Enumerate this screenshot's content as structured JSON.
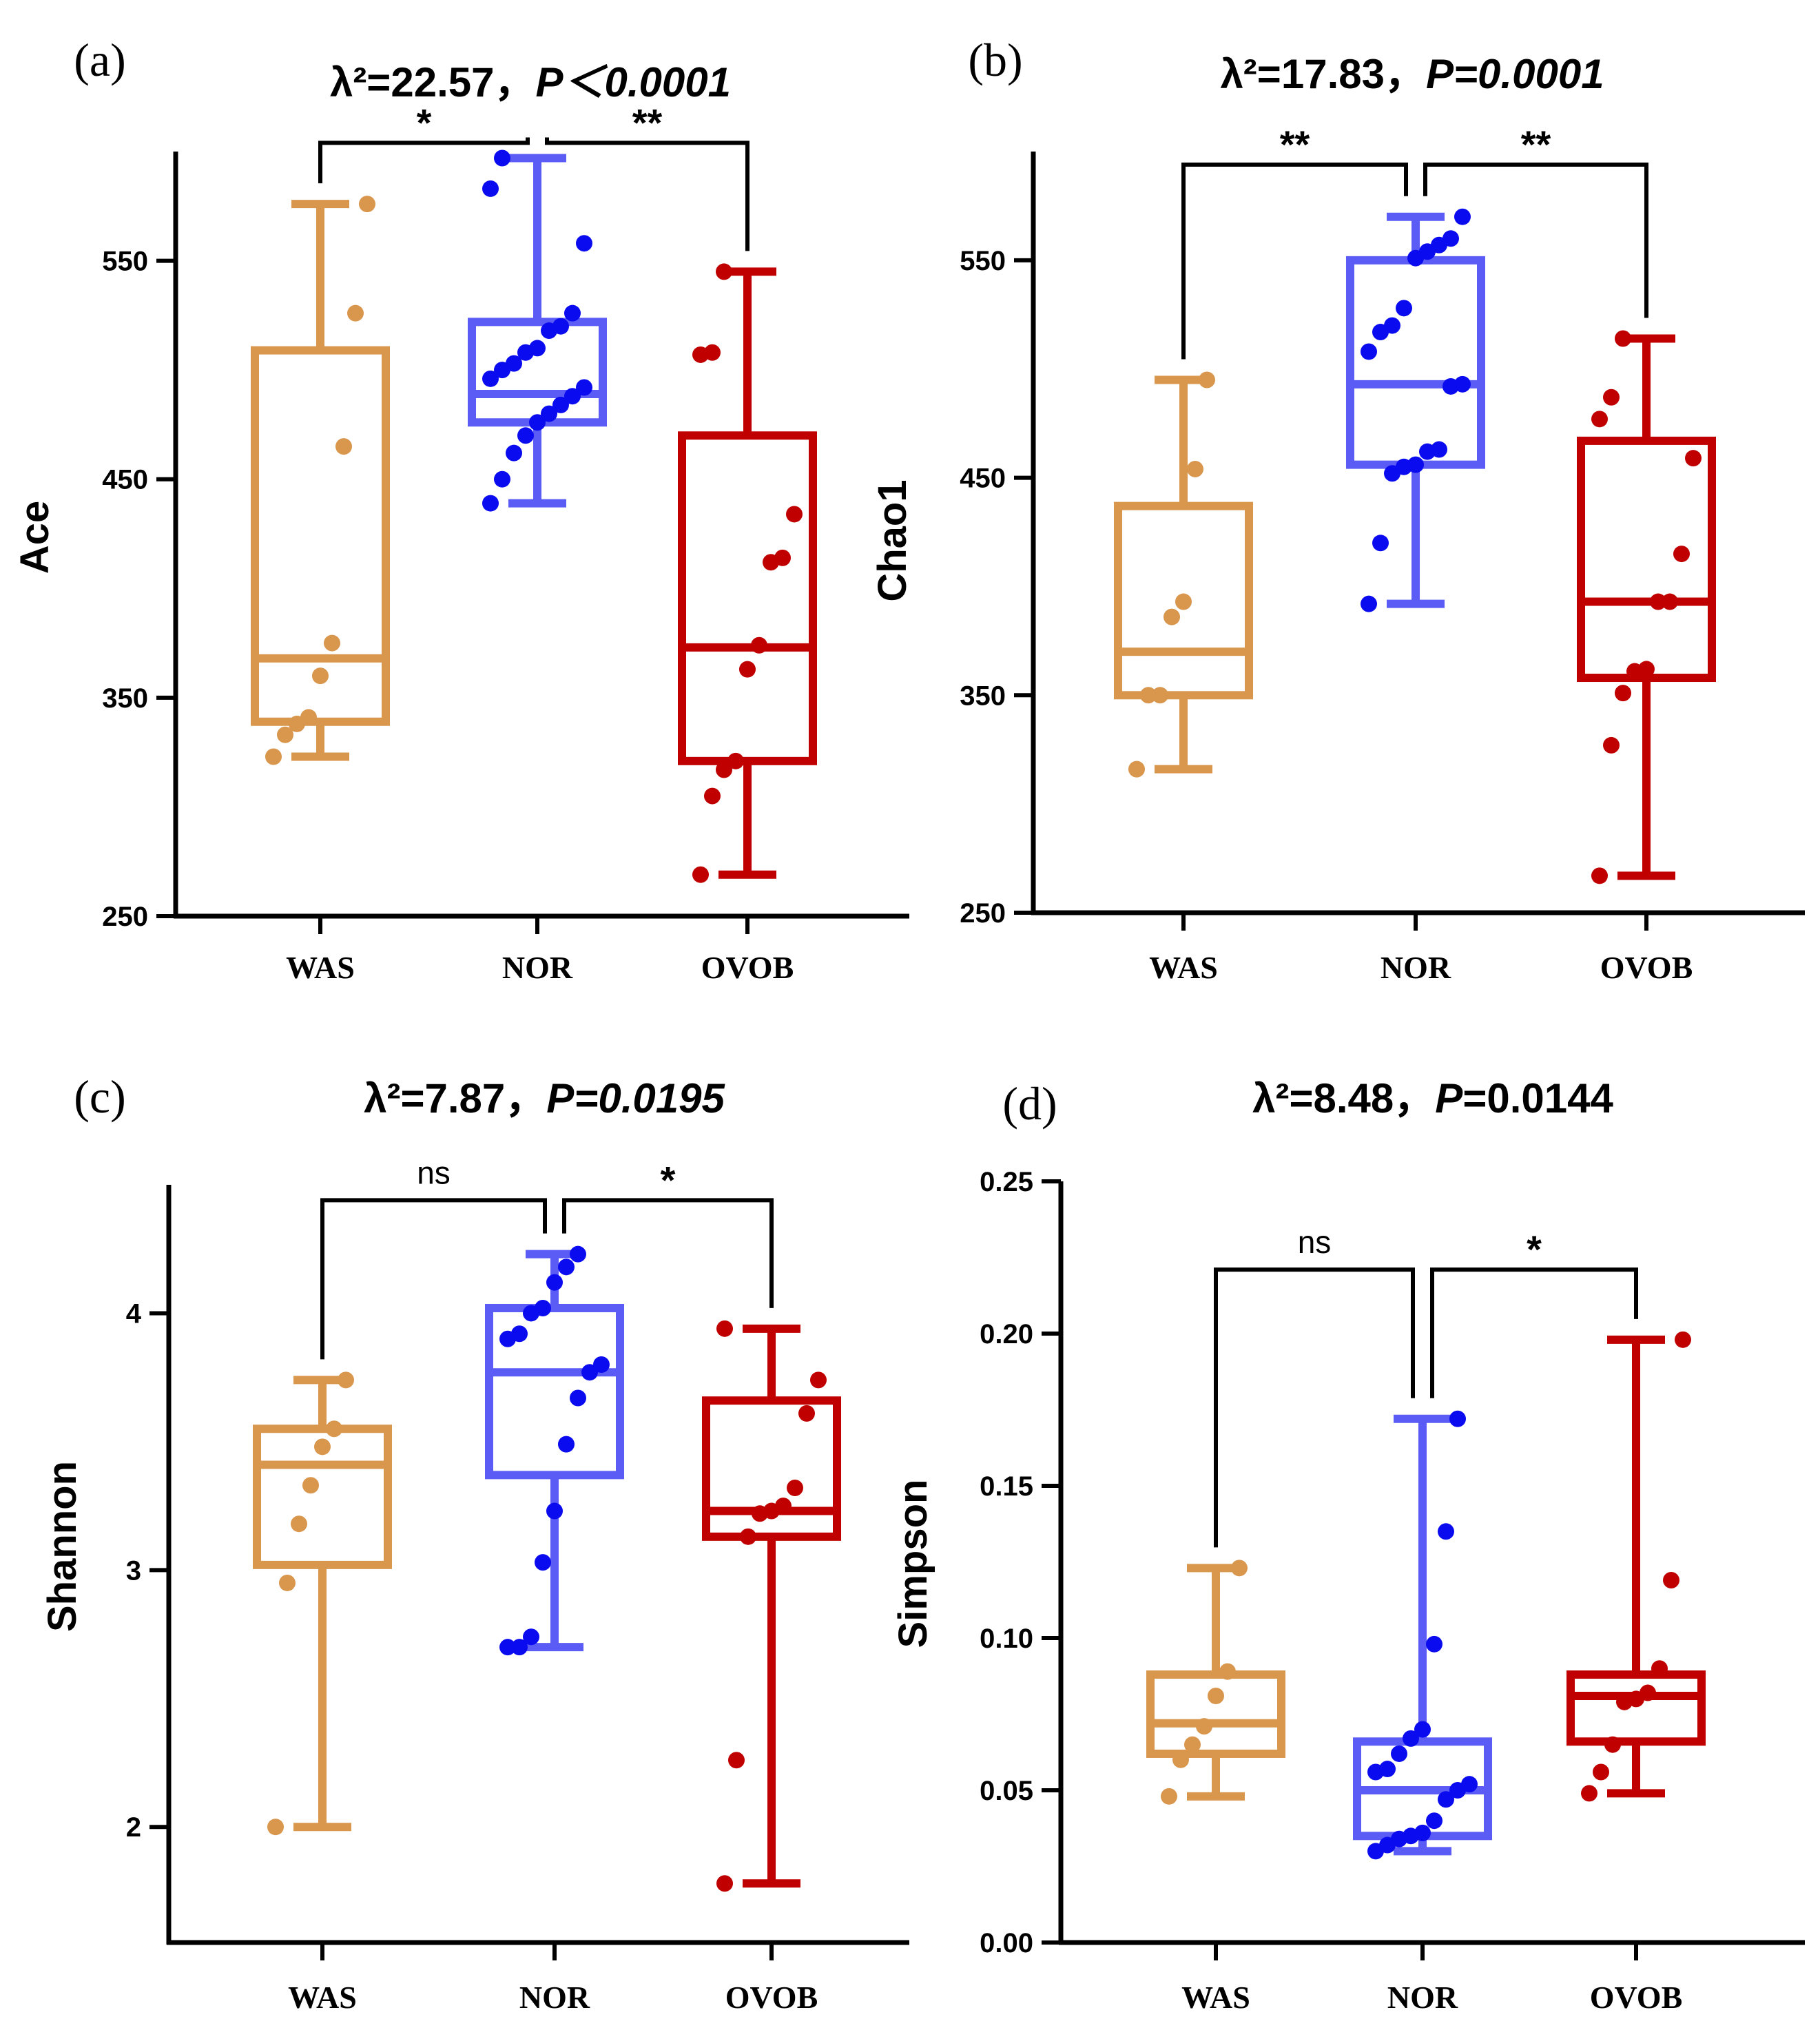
{
  "colors": {
    "WAS": "#D9964D",
    "NOR": "#5B5BF5",
    "NOR_points": "#0B0BF0",
    "OVOB": "#C00000",
    "axis": "#000000"
  },
  "chart_data": [
    {
      "type": "box",
      "panel_label": "(a)",
      "title": {
        "stat": "λ²=22.57，",
        "p": "P＜0.0001"
      },
      "ylabel": "Ace",
      "ylim": [
        250,
        600
      ],
      "yticks": [
        250,
        350,
        450,
        550
      ],
      "categories": [
        "WAS",
        "NOR",
        "OVOB"
      ],
      "groups": [
        {
          "name": "WAS",
          "min": 323,
          "q1": 339,
          "median": 368,
          "q3": 509,
          "max": 576,
          "points": [
            323,
            333,
            338,
            341,
            360,
            375,
            465,
            526,
            576
          ]
        },
        {
          "name": "NOR",
          "min": 439,
          "q1": 476,
          "median": 489,
          "q3": 522,
          "max": 597,
          "points": [
            439,
            450,
            462,
            470,
            476,
            480,
            484,
            488,
            492,
            496,
            500,
            503,
            508,
            510,
            518,
            520,
            526,
            558,
            583,
            597
          ]
        },
        {
          "name": "OVOB",
          "min": 269,
          "q1": 321,
          "median": 373,
          "q3": 470,
          "max": 545,
          "points": [
            269,
            305,
            317,
            321,
            363,
            374,
            412,
            414,
            434,
            507,
            508,
            545
          ]
        }
      ],
      "comparisons": [
        {
          "from": "WAS",
          "to": "NOR",
          "label": "*",
          "y": 604
        },
        {
          "from": "NOR",
          "to": "OVOB",
          "label": "**",
          "y": 604
        }
      ]
    },
    {
      "type": "box",
      "panel_label": "(b)",
      "title": {
        "stat": "λ²=17.83，",
        "p": "P=0.0001"
      },
      "ylabel": "Chao1",
      "ylim": [
        250,
        600
      ],
      "yticks": [
        250,
        350,
        450,
        550
      ],
      "categories": [
        "WAS",
        "NOR",
        "OVOB"
      ],
      "groups": [
        {
          "name": "WAS",
          "min": 316,
          "q1": 350,
          "median": 370,
          "q3": 437,
          "max": 495,
          "points": [
            316,
            350,
            350,
            386,
            393,
            454,
            495
          ]
        },
        {
          "name": "NOR",
          "min": 392,
          "q1": 456,
          "median": 493,
          "q3": 550,
          "max": 570,
          "points": [
            392,
            420,
            452,
            455,
            456,
            462,
            463,
            492,
            493,
            508,
            517,
            520,
            528,
            551,
            554,
            557,
            560,
            570
          ]
        },
        {
          "name": "OVOB",
          "min": 267,
          "q1": 358,
          "median": 393,
          "q3": 467,
          "max": 514,
          "points": [
            267,
            327,
            351,
            361,
            362,
            393,
            393,
            415,
            459,
            477,
            487,
            514
          ]
        }
      ],
      "comparisons": [
        {
          "from": "WAS",
          "to": "NOR",
          "label": "**",
          "y": 594
        },
        {
          "from": "NOR",
          "to": "OVOB",
          "label": "**",
          "y": 594
        }
      ]
    },
    {
      "type": "box",
      "panel_label": "(c)",
      "title": {
        "stat": "λ²=7.87，",
        "p": "P=0.0195"
      },
      "ylabel": "Shannon",
      "ylim": [
        1.55,
        4.5
      ],
      "yticks": [
        2,
        3,
        4
      ],
      "categories": [
        "WAS",
        "NOR",
        "OVOB"
      ],
      "groups": [
        {
          "name": "WAS",
          "min": 2.0,
          "q1": 3.02,
          "median": 3.41,
          "q3": 3.55,
          "max": 3.74,
          "points": [
            2.0,
            2.95,
            3.18,
            3.33,
            3.48,
            3.55,
            3.74
          ]
        },
        {
          "name": "NOR",
          "min": 2.7,
          "q1": 3.37,
          "median": 3.77,
          "q3": 4.02,
          "max": 4.23,
          "points": [
            2.7,
            2.7,
            2.74,
            3.03,
            3.23,
            3.49,
            3.67,
            3.77,
            3.8,
            3.9,
            3.92,
            4.0,
            4.02,
            4.12,
            4.18,
            4.23
          ]
        },
        {
          "name": "OVOB",
          "min": 1.78,
          "q1": 3.13,
          "median": 3.23,
          "q3": 3.66,
          "max": 3.94,
          "points": [
            1.78,
            2.26,
            3.13,
            3.22,
            3.23,
            3.25,
            3.32,
            3.61,
            3.74,
            3.94
          ]
        }
      ],
      "comparisons": [
        {
          "from": "WAS",
          "to": "NOR",
          "label": "ns",
          "y": 4.44
        },
        {
          "from": "NOR",
          "to": "OVOB",
          "label": "*",
          "y": 4.44
        }
      ]
    },
    {
      "type": "box",
      "panel_label": "(d)",
      "title": {
        "stat": "λ²=8.48，",
        "p": "P",
        "p_rest": "=0.0144"
      },
      "ylabel": "Simpson",
      "ylim": [
        0.0,
        0.25
      ],
      "yticks": [
        0.0,
        0.05,
        0.1,
        0.15,
        0.2,
        0.25
      ],
      "ytick_labels": [
        "0.00",
        "0.05",
        "0.10",
        "0.15",
        "0.20",
        "0.25"
      ],
      "categories": [
        "WAS",
        "NOR",
        "OVOB"
      ],
      "groups": [
        {
          "name": "WAS",
          "min": 0.048,
          "q1": 0.062,
          "median": 0.072,
          "q3": 0.088,
          "max": 0.123,
          "points": [
            0.048,
            0.06,
            0.065,
            0.071,
            0.081,
            0.089,
            0.123
          ]
        },
        {
          "name": "NOR",
          "min": 0.03,
          "q1": 0.035,
          "median": 0.05,
          "q3": 0.066,
          "max": 0.172,
          "points": [
            0.03,
            0.032,
            0.034,
            0.035,
            0.036,
            0.04,
            0.047,
            0.05,
            0.052,
            0.056,
            0.057,
            0.062,
            0.067,
            0.07,
            0.098,
            0.135,
            0.172
          ]
        },
        {
          "name": "OVOB",
          "min": 0.049,
          "q1": 0.066,
          "median": 0.081,
          "q3": 0.088,
          "max": 0.198,
          "points": [
            0.049,
            0.056,
            0.065,
            0.079,
            0.08,
            0.082,
            0.09,
            0.119,
            0.198
          ]
        }
      ],
      "comparisons": [
        {
          "from": "WAS",
          "to": "NOR",
          "label": "ns",
          "y": 0.221
        },
        {
          "from": "NOR",
          "to": "OVOB",
          "label": "*",
          "y": 0.221
        }
      ]
    }
  ]
}
